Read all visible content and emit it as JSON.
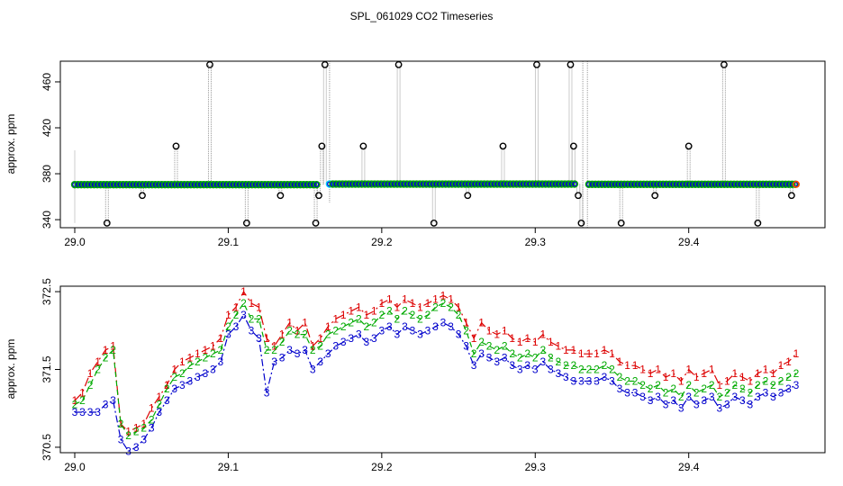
{
  "title": "SPL_061029  CO2 Timeseries",
  "colors": {
    "black": "#000000",
    "red": "#dd0000",
    "green": "#00aa00",
    "blue": "#0000cc",
    "grey": "#999999",
    "cyan": "#00d0ff",
    "orange": "#ff4400"
  },
  "chart_data": [
    {
      "type": "scatter",
      "title": "SPL_061029  CO2 Timeseries",
      "ylabel": "approx. ppm",
      "xlim": [
        29.0,
        29.47
      ],
      "ylim": [
        333,
        478
      ],
      "x_ticks": [
        29.0,
        29.1,
        29.2,
        29.3,
        29.4
      ],
      "x_tick_labels": [
        "29.0",
        "29.1",
        "29.2",
        "29.3",
        "29.4"
      ],
      "y_ticks": [
        340,
        380,
        420,
        460
      ],
      "y_tick_labels": [
        "340",
        "380",
        "420",
        "460"
      ],
      "baseline_segments": [
        {
          "x_start": 29.0,
          "x_end": 29.158,
          "y": 370.5
        },
        {
          "x_start": 29.166,
          "x_end": 29.326,
          "y": 371.0
        },
        {
          "x_start": 29.335,
          "x_end": 29.47,
          "y": 370.8
        }
      ],
      "outliers": [
        {
          "x": 29.021,
          "y": 337
        },
        {
          "x": 29.044,
          "y": 361
        },
        {
          "x": 29.066,
          "y": 404
        },
        {
          "x": 29.088,
          "y": 475
        },
        {
          "x": 29.112,
          "y": 337
        },
        {
          "x": 29.134,
          "y": 361
        },
        {
          "x": 29.157,
          "y": 337
        },
        {
          "x": 29.159,
          "y": 361
        },
        {
          "x": 29.161,
          "y": 404
        },
        {
          "x": 29.163,
          "y": 475
        },
        {
          "x": 29.188,
          "y": 404
        },
        {
          "x": 29.211,
          "y": 475
        },
        {
          "x": 29.234,
          "y": 337
        },
        {
          "x": 29.256,
          "y": 361
        },
        {
          "x": 29.279,
          "y": 404
        },
        {
          "x": 29.301,
          "y": 475
        },
        {
          "x": 29.323,
          "y": 475
        },
        {
          "x": 29.325,
          "y": 404
        },
        {
          "x": 29.328,
          "y": 361
        },
        {
          "x": 29.33,
          "y": 337
        },
        {
          "x": 29.356,
          "y": 337
        },
        {
          "x": 29.378,
          "y": 361
        },
        {
          "x": 29.4,
          "y": 404
        },
        {
          "x": 29.423,
          "y": 475
        },
        {
          "x": 29.445,
          "y": 337
        },
        {
          "x": 29.467,
          "y": 361
        }
      ]
    },
    {
      "type": "line",
      "ylabel": "approx. ppm",
      "xlim": [
        29.0,
        29.47
      ],
      "ylim": [
        370.43,
        372.57
      ],
      "x_ticks": [
        29.0,
        29.1,
        29.2,
        29.3,
        29.4
      ],
      "x_tick_labels": [
        "29.0",
        "29.1",
        "29.2",
        "29.3",
        "29.4"
      ],
      "y_ticks": [
        370.5,
        371.5,
        372.5
      ],
      "y_tick_labels": [
        "370.5",
        "371.5",
        "372.5"
      ],
      "x": [
        29.0,
        29.005,
        29.01,
        29.015,
        29.02,
        29.025,
        29.03,
        29.035,
        29.04,
        29.045,
        29.05,
        29.055,
        29.06,
        29.065,
        29.07,
        29.075,
        29.08,
        29.085,
        29.09,
        29.095,
        29.1,
        29.105,
        29.11,
        29.115,
        29.12,
        29.125,
        29.13,
        29.135,
        29.14,
        29.145,
        29.15,
        29.155,
        29.16,
        29.165,
        29.17,
        29.175,
        29.18,
        29.185,
        29.19,
        29.195,
        29.2,
        29.205,
        29.21,
        29.215,
        29.22,
        29.225,
        29.23,
        29.235,
        29.24,
        29.245,
        29.25,
        29.255,
        29.26,
        29.265,
        29.27,
        29.275,
        29.28,
        29.285,
        29.29,
        29.295,
        29.3,
        29.305,
        29.31,
        29.315,
        29.32,
        29.325,
        29.33,
        29.335,
        29.34,
        29.345,
        29.35,
        29.355,
        29.36,
        29.365,
        29.37,
        29.375,
        29.38,
        29.385,
        29.39,
        29.395,
        29.4,
        29.405,
        29.41,
        29.415,
        29.42,
        29.425,
        29.43,
        29.435,
        29.44,
        29.445,
        29.45,
        29.455,
        29.46,
        29.465,
        29.47
      ],
      "series": [
        {
          "name": "1",
          "marker": "1",
          "color": "#dd0000",
          "values": [
            371.1,
            371.2,
            371.45,
            371.6,
            371.75,
            371.8,
            370.8,
            370.7,
            370.75,
            370.8,
            371.0,
            371.15,
            371.3,
            371.5,
            371.6,
            371.65,
            371.7,
            371.75,
            371.8,
            371.9,
            372.2,
            372.3,
            372.5,
            372.35,
            372.3,
            371.9,
            371.8,
            371.95,
            372.1,
            372.0,
            372.1,
            371.8,
            371.9,
            372.05,
            372.15,
            372.2,
            372.25,
            372.3,
            372.2,
            372.25,
            372.35,
            372.4,
            372.3,
            372.4,
            372.35,
            372.3,
            372.35,
            372.4,
            372.45,
            372.4,
            372.3,
            372.1,
            371.9,
            372.1,
            372.0,
            371.95,
            372.0,
            371.9,
            371.85,
            371.9,
            371.85,
            371.95,
            371.85,
            371.8,
            371.75,
            371.75,
            371.7,
            371.7,
            371.7,
            371.75,
            371.7,
            371.6,
            371.55,
            371.55,
            371.5,
            371.45,
            371.5,
            371.4,
            371.45,
            371.35,
            371.5,
            371.4,
            371.45,
            371.5,
            371.3,
            371.35,
            371.45,
            371.4,
            371.35,
            371.45,
            371.5,
            371.45,
            371.55,
            371.6,
            371.7
          ]
        },
        {
          "name": "2",
          "marker": "2",
          "color": "#00aa00",
          "values": [
            371.05,
            371.1,
            371.3,
            371.5,
            371.65,
            371.75,
            370.8,
            370.65,
            370.7,
            370.75,
            370.85,
            371.05,
            371.25,
            371.4,
            371.45,
            371.55,
            371.6,
            371.65,
            371.7,
            371.75,
            372.05,
            372.2,
            372.35,
            372.15,
            372.15,
            371.75,
            371.75,
            371.85,
            372.0,
            371.95,
            371.95,
            371.75,
            371.8,
            371.95,
            372.0,
            372.05,
            372.1,
            372.15,
            372.05,
            372.1,
            372.2,
            372.25,
            372.15,
            372.25,
            372.2,
            372.15,
            372.2,
            372.3,
            372.35,
            372.3,
            372.2,
            372.0,
            371.7,
            371.85,
            371.8,
            371.75,
            371.8,
            371.7,
            371.65,
            371.7,
            371.65,
            371.75,
            371.65,
            371.6,
            371.55,
            371.55,
            371.5,
            371.5,
            371.5,
            371.55,
            371.5,
            371.4,
            371.35,
            371.35,
            371.3,
            371.25,
            371.3,
            371.2,
            371.25,
            371.15,
            371.3,
            371.2,
            371.25,
            371.3,
            371.15,
            371.2,
            371.3,
            371.25,
            371.2,
            371.3,
            371.35,
            371.3,
            371.35,
            371.4,
            371.45
          ]
        },
        {
          "name": "3",
          "marker": "3",
          "color": "#0000cc",
          "values": [
            370.95,
            370.95,
            370.95,
            370.95,
            371.05,
            371.1,
            370.6,
            370.45,
            370.5,
            370.6,
            370.75,
            370.95,
            371.1,
            371.25,
            371.3,
            371.35,
            371.4,
            371.45,
            371.5,
            371.6,
            371.95,
            372.05,
            372.2,
            372.0,
            371.9,
            371.2,
            371.6,
            371.65,
            371.75,
            371.7,
            371.75,
            371.5,
            371.6,
            371.7,
            371.8,
            371.85,
            371.9,
            371.95,
            371.85,
            371.9,
            372.0,
            372.05,
            371.95,
            372.05,
            372.0,
            371.95,
            372.0,
            372.05,
            372.1,
            372.05,
            371.95,
            371.8,
            371.55,
            371.7,
            371.65,
            371.6,
            371.65,
            371.55,
            371.5,
            371.55,
            371.5,
            371.6,
            371.5,
            371.45,
            371.4,
            371.35,
            371.35,
            371.35,
            371.35,
            371.4,
            371.35,
            371.25,
            371.2,
            371.2,
            371.15,
            371.1,
            371.15,
            371.05,
            371.1,
            371.0,
            371.15,
            371.05,
            371.1,
            371.15,
            371.0,
            371.05,
            371.15,
            371.1,
            371.05,
            371.15,
            371.2,
            371.15,
            371.2,
            371.25,
            371.3
          ]
        }
      ]
    }
  ]
}
